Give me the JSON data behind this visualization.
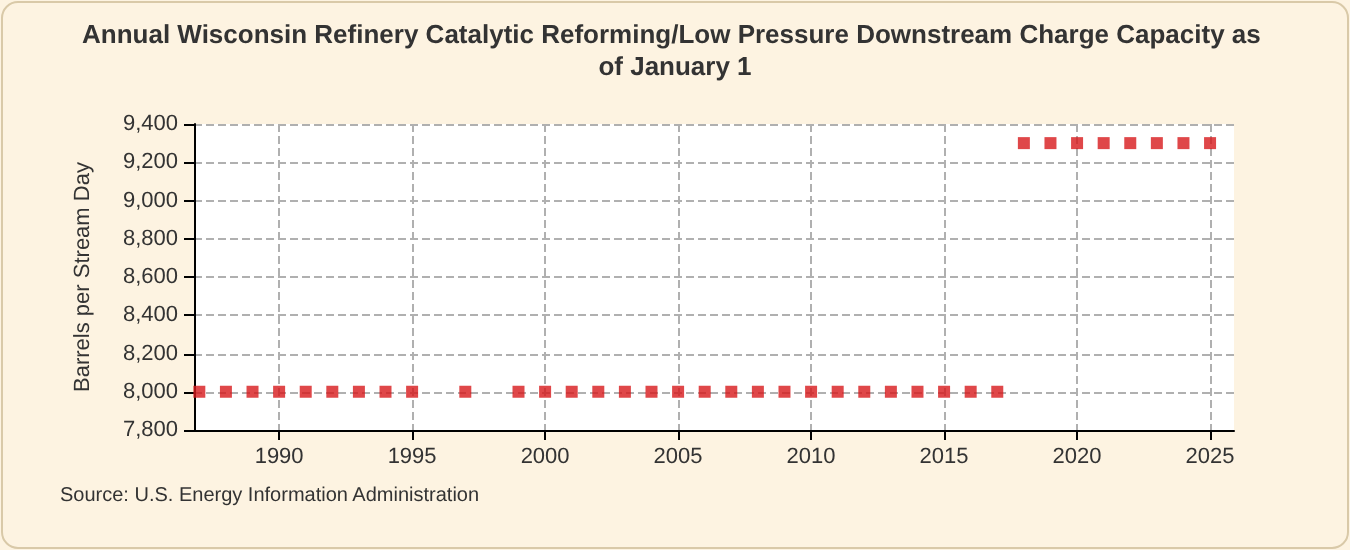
{
  "chart_data": {
    "type": "scatter",
    "title": "Annual Wisconsin Refinery Catalytic Reforming/Low Pressure Downstream Charge Capacity as of January 1",
    "ylabel": "Barrels per Stream Day",
    "annotations": [
      "Source: U.S. Energy Information Administration"
    ],
    "x": [
      1987,
      1988,
      1989,
      1990,
      1991,
      1992,
      1993,
      1994,
      1995,
      1996,
      1997,
      1998,
      1999,
      2000,
      2001,
      2002,
      2003,
      2004,
      2005,
      2006,
      2007,
      2008,
      2009,
      2010,
      2011,
      2012,
      2013,
      2014,
      2015,
      2016,
      2017,
      2018,
      2019,
      2020,
      2021,
      2022,
      2023,
      2024,
      2025
    ],
    "series": [
      {
        "color": "#d7191c",
        "values": [
          8000,
          8000,
          8000,
          8000,
          8000,
          8000,
          8000,
          8000,
          8000,
          null,
          8000,
          null,
          8000,
          8000,
          8000,
          8000,
          8000,
          8000,
          8000,
          8000,
          8000,
          8000,
          8000,
          8000,
          8000,
          8000,
          8000,
          8000,
          8000,
          8000,
          8000,
          9300,
          9300,
          9300,
          9300,
          9300,
          9300,
          9300,
          9300
        ]
      }
    ],
    "xlim": [
      1986.8,
      2025.9
    ],
    "xticks": [
      1990,
      1995,
      2000,
      2005,
      2010,
      2015,
      2020,
      2025
    ],
    "ylim": [
      7800,
      9400
    ],
    "yticks": [
      {
        "value": 7800,
        "label": "7,800"
      },
      {
        "value": 8000,
        "label": "8,000"
      },
      {
        "value": 8200,
        "label": "8,200"
      },
      {
        "value": 8400,
        "label": "8,400"
      },
      {
        "value": 8600,
        "label": "8,600"
      },
      {
        "value": 8800,
        "label": "8,800"
      },
      {
        "value": 9000,
        "label": "9,000"
      },
      {
        "value": 9200,
        "label": "9,200"
      },
      {
        "value": 9400,
        "label": "9,400"
      }
    ],
    "grid": true,
    "marker": "square"
  }
}
